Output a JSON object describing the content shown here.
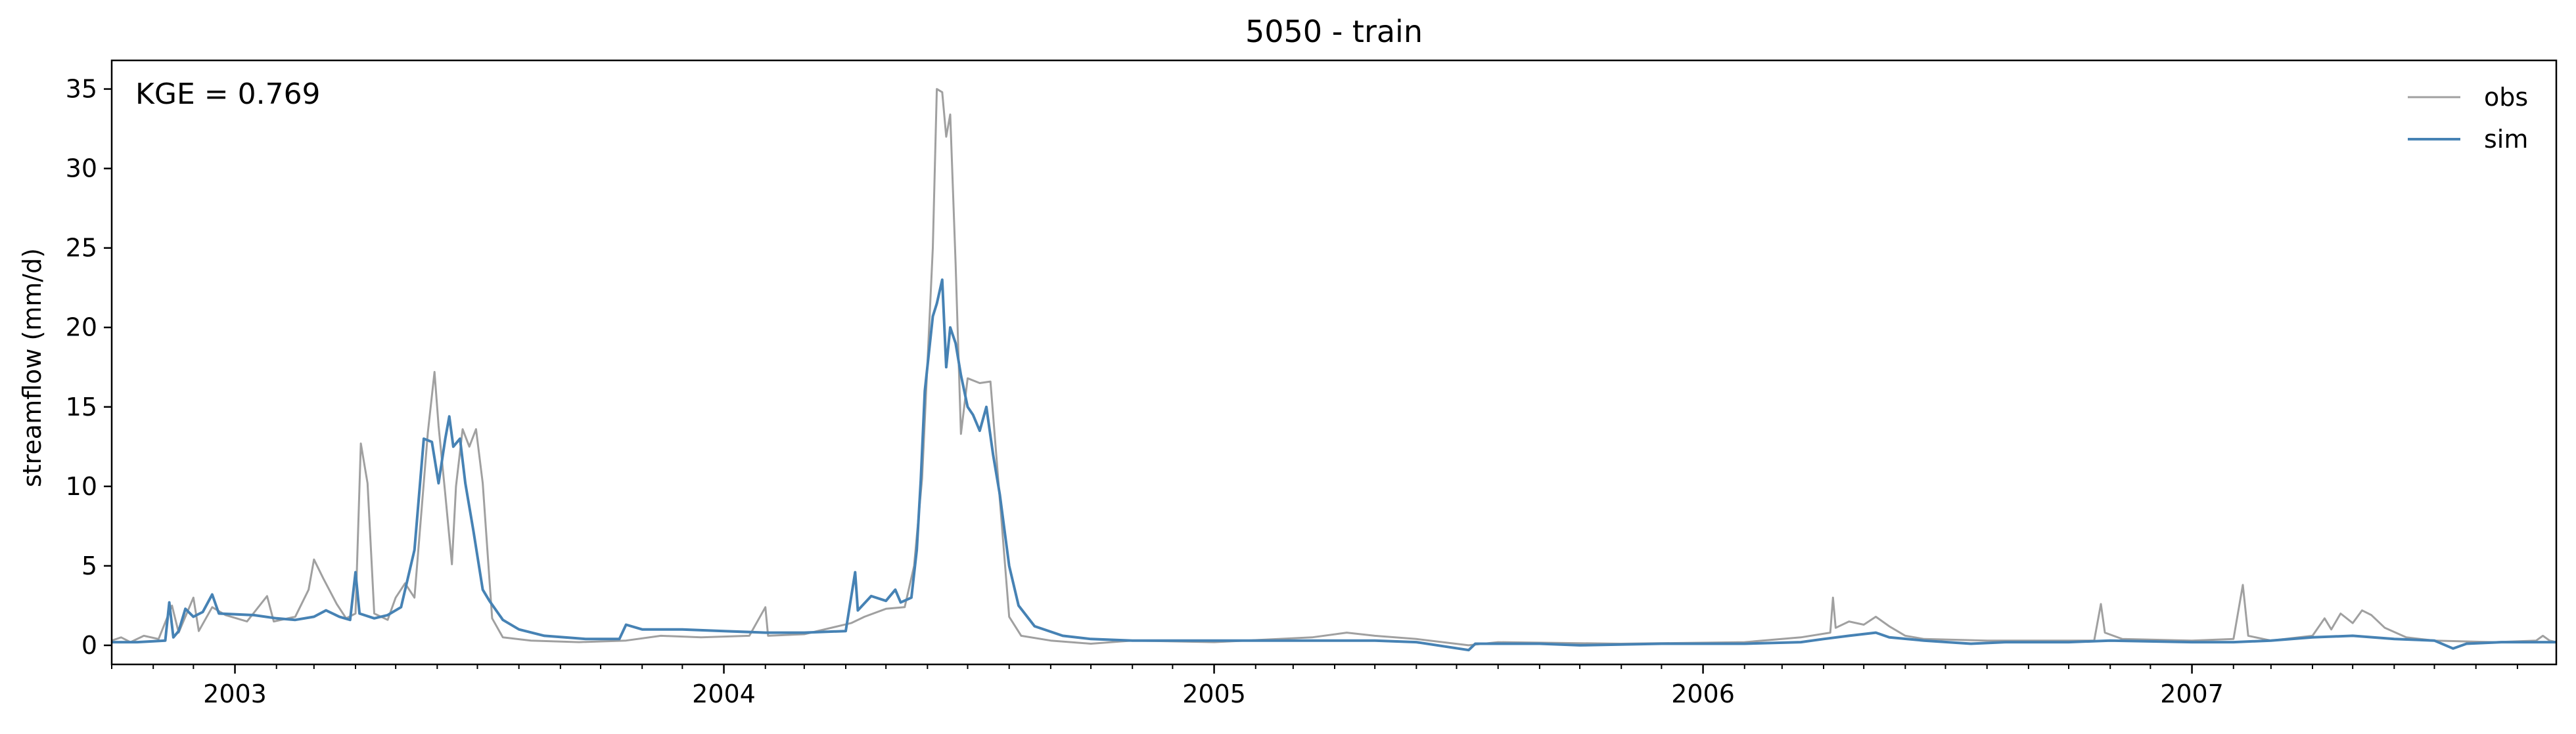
{
  "chart_data": {
    "type": "line",
    "title": "5050 - train",
    "xlabel": "",
    "ylabel": "streamflow (mm/d)",
    "xlim": [
      "2002-10-01",
      "2007-09-30"
    ],
    "ylim": [
      -1.2,
      36.8
    ],
    "yticks": [
      0,
      5,
      10,
      15,
      20,
      25,
      30,
      35
    ],
    "xticks": [
      {
        "label": "2003",
        "date": "2003-01-01"
      },
      {
        "label": "2004",
        "date": "2004-01-01"
      },
      {
        "label": "2005",
        "date": "2005-01-01"
      },
      {
        "label": "2006",
        "date": "2006-01-01"
      },
      {
        "label": "2007",
        "date": "2007-01-01"
      }
    ],
    "annotation": "KGE = 0.769",
    "legend_position": "top-right",
    "grid": false,
    "series": [
      {
        "name": "obs",
        "color": "#a0a0a0",
        "points": [
          [
            "2002-10-01",
            0.3
          ],
          [
            "2002-10-08",
            0.5
          ],
          [
            "2002-10-15",
            0.2
          ],
          [
            "2002-10-25",
            0.6
          ],
          [
            "2002-11-05",
            0.4
          ],
          [
            "2002-11-15",
            2.5
          ],
          [
            "2002-11-20",
            0.8
          ],
          [
            "2002-12-01",
            3.0
          ],
          [
            "2002-12-05",
            0.9
          ],
          [
            "2002-12-15",
            2.4
          ],
          [
            "2002-12-25",
            1.9
          ],
          [
            "2003-01-10",
            1.5
          ],
          [
            "2003-01-25",
            3.1
          ],
          [
            "2003-01-30",
            1.5
          ],
          [
            "2003-02-15",
            1.8
          ],
          [
            "2003-02-25",
            3.5
          ],
          [
            "2003-03-01",
            5.4
          ],
          [
            "2003-03-08",
            4.2
          ],
          [
            "2003-03-18",
            2.6
          ],
          [
            "2003-03-25",
            1.7
          ],
          [
            "2003-04-01",
            2.0
          ],
          [
            "2003-04-05",
            12.7
          ],
          [
            "2003-04-10",
            10.2
          ],
          [
            "2003-04-15",
            2.0
          ],
          [
            "2003-04-25",
            1.6
          ],
          [
            "2003-05-01",
            3.0
          ],
          [
            "2003-05-08",
            3.9
          ],
          [
            "2003-05-15",
            3.0
          ],
          [
            "2003-05-25",
            13.4
          ],
          [
            "2003-05-30",
            17.2
          ],
          [
            "2003-06-02",
            13.8
          ],
          [
            "2003-06-07",
            9.5
          ],
          [
            "2003-06-12",
            5.1
          ],
          [
            "2003-06-15",
            10.0
          ],
          [
            "2003-06-20",
            13.6
          ],
          [
            "2003-06-25",
            12.5
          ],
          [
            "2003-06-30",
            13.6
          ],
          [
            "2003-07-05",
            10.2
          ],
          [
            "2003-07-12",
            1.7
          ],
          [
            "2003-07-20",
            0.5
          ],
          [
            "2003-08-10",
            0.3
          ],
          [
            "2003-09-15",
            0.2
          ],
          [
            "2003-10-20",
            0.3
          ],
          [
            "2003-11-15",
            0.6
          ],
          [
            "2003-12-15",
            0.5
          ],
          [
            "2004-01-20",
            0.6
          ],
          [
            "2004-02-01",
            2.4
          ],
          [
            "2004-02-03",
            0.6
          ],
          [
            "2004-03-01",
            0.7
          ],
          [
            "2004-04-05",
            1.4
          ],
          [
            "2004-04-15",
            1.8
          ],
          [
            "2004-05-01",
            2.3
          ],
          [
            "2004-05-15",
            2.4
          ],
          [
            "2004-05-22",
            5.0
          ],
          [
            "2004-05-28",
            10.5
          ],
          [
            "2004-06-05",
            25.0
          ],
          [
            "2004-06-08",
            35.0
          ],
          [
            "2004-06-12",
            34.8
          ],
          [
            "2004-06-15",
            32.0
          ],
          [
            "2004-06-18",
            33.4
          ],
          [
            "2004-06-22",
            24.0
          ],
          [
            "2004-06-26",
            13.3
          ],
          [
            "2004-07-01",
            16.8
          ],
          [
            "2004-07-10",
            16.5
          ],
          [
            "2004-07-18",
            16.6
          ],
          [
            "2004-07-25",
            9.2
          ],
          [
            "2004-08-01",
            1.8
          ],
          [
            "2004-08-10",
            0.6
          ],
          [
            "2004-09-01",
            0.3
          ],
          [
            "2004-10-01",
            0.1
          ],
          [
            "2004-11-01",
            0.3
          ],
          [
            "2005-01-01",
            0.2
          ],
          [
            "2005-03-15",
            0.5
          ],
          [
            "2005-04-10",
            0.8
          ],
          [
            "2005-05-01",
            0.6
          ],
          [
            "2005-06-01",
            0.4
          ],
          [
            "2005-07-10",
            0.0
          ],
          [
            "2005-08-01",
            0.2
          ],
          [
            "2005-11-01",
            0.1
          ],
          [
            "2006-02-01",
            0.2
          ],
          [
            "2006-03-15",
            0.5
          ],
          [
            "2006-04-06",
            0.8
          ],
          [
            "2006-04-08",
            3.0
          ],
          [
            "2006-04-10",
            1.1
          ],
          [
            "2006-04-20",
            1.5
          ],
          [
            "2006-05-01",
            1.3
          ],
          [
            "2006-05-10",
            1.8
          ],
          [
            "2006-05-20",
            1.2
          ],
          [
            "2006-06-01",
            0.6
          ],
          [
            "2006-06-15",
            0.4
          ],
          [
            "2006-08-01",
            0.3
          ],
          [
            "2006-10-20",
            0.3
          ],
          [
            "2006-10-25",
            2.6
          ],
          [
            "2006-10-28",
            0.8
          ],
          [
            "2006-11-10",
            0.4
          ],
          [
            "2007-01-01",
            0.3
          ],
          [
            "2007-02-01",
            0.4
          ],
          [
            "2007-02-08",
            3.8
          ],
          [
            "2007-02-12",
            0.6
          ],
          [
            "2007-03-01",
            0.3
          ],
          [
            "2007-04-01",
            0.6
          ],
          [
            "2007-04-10",
            1.7
          ],
          [
            "2007-04-15",
            1.0
          ],
          [
            "2007-04-22",
            2.0
          ],
          [
            "2007-05-01",
            1.4
          ],
          [
            "2007-05-08",
            2.2
          ],
          [
            "2007-05-15",
            1.9
          ],
          [
            "2007-05-25",
            1.1
          ],
          [
            "2007-06-10",
            0.5
          ],
          [
            "2007-07-01",
            0.3
          ],
          [
            "2007-08-15",
            0.2
          ],
          [
            "2007-09-15",
            0.3
          ],
          [
            "2007-09-20",
            0.6
          ],
          [
            "2007-09-25",
            0.3
          ],
          [
            "2007-09-30",
            0.2
          ]
        ]
      },
      {
        "name": "sim",
        "color": "#4682b4",
        "points": [
          [
            "2002-10-01",
            0.2
          ],
          [
            "2002-10-20",
            0.2
          ],
          [
            "2002-11-10",
            0.3
          ],
          [
            "2002-11-13",
            2.7
          ],
          [
            "2002-11-16",
            0.5
          ],
          [
            "2002-11-20",
            0.9
          ],
          [
            "2002-11-25",
            2.3
          ],
          [
            "2002-12-01",
            1.8
          ],
          [
            "2002-12-08",
            2.1
          ],
          [
            "2002-12-15",
            3.2
          ],
          [
            "2002-12-20",
            2.0
          ],
          [
            "2003-01-15",
            1.9
          ],
          [
            "2003-02-01",
            1.7
          ],
          [
            "2003-02-15",
            1.6
          ],
          [
            "2003-03-01",
            1.8
          ],
          [
            "2003-03-10",
            2.2
          ],
          [
            "2003-03-20",
            1.8
          ],
          [
            "2003-03-28",
            1.6
          ],
          [
            "2003-04-01",
            4.6
          ],
          [
            "2003-04-04",
            2.0
          ],
          [
            "2003-04-15",
            1.7
          ],
          [
            "2003-04-25",
            1.9
          ],
          [
            "2003-05-05",
            2.4
          ],
          [
            "2003-05-15",
            6.0
          ],
          [
            "2003-05-22",
            13.0
          ],
          [
            "2003-05-28",
            12.8
          ],
          [
            "2003-06-02",
            10.2
          ],
          [
            "2003-06-07",
            13.0
          ],
          [
            "2003-06-10",
            14.4
          ],
          [
            "2003-06-13",
            12.5
          ],
          [
            "2003-06-18",
            13.0
          ],
          [
            "2003-06-22",
            10.2
          ],
          [
            "2003-06-28",
            7.2
          ],
          [
            "2003-07-05",
            3.5
          ],
          [
            "2003-07-10",
            2.8
          ],
          [
            "2003-07-20",
            1.6
          ],
          [
            "2003-08-01",
            1.0
          ],
          [
            "2003-08-20",
            0.6
          ],
          [
            "2003-09-20",
            0.4
          ],
          [
            "2003-10-15",
            0.4
          ],
          [
            "2003-10-20",
            1.3
          ],
          [
            "2003-11-01",
            1.0
          ],
          [
            "2003-12-01",
            1.0
          ],
          [
            "2004-01-01",
            0.9
          ],
          [
            "2004-02-01",
            0.8
          ],
          [
            "2004-03-01",
            0.8
          ],
          [
            "2004-04-01",
            0.9
          ],
          [
            "2004-04-08",
            4.6
          ],
          [
            "2004-04-10",
            2.2
          ],
          [
            "2004-04-20",
            3.1
          ],
          [
            "2004-05-01",
            2.8
          ],
          [
            "2004-05-08",
            3.5
          ],
          [
            "2004-05-12",
            2.7
          ],
          [
            "2004-05-20",
            3.0
          ],
          [
            "2004-05-24",
            6.0
          ],
          [
            "2004-05-27",
            10.4
          ],
          [
            "2004-05-30",
            16.0
          ],
          [
            "2004-06-05",
            20.7
          ],
          [
            "2004-06-08",
            21.5
          ],
          [
            "2004-06-12",
            23.0
          ],
          [
            "2004-06-15",
            17.5
          ],
          [
            "2004-06-18",
            20.0
          ],
          [
            "2004-06-22",
            19.0
          ],
          [
            "2004-06-26",
            17.0
          ],
          [
            "2004-07-01",
            15.0
          ],
          [
            "2004-07-05",
            14.5
          ],
          [
            "2004-07-10",
            13.5
          ],
          [
            "2004-07-15",
            15.0
          ],
          [
            "2004-07-20",
            12.0
          ],
          [
            "2004-07-25",
            9.5
          ],
          [
            "2004-08-01",
            5.0
          ],
          [
            "2004-08-08",
            2.5
          ],
          [
            "2004-08-20",
            1.2
          ],
          [
            "2004-09-10",
            0.6
          ],
          [
            "2004-10-01",
            0.4
          ],
          [
            "2004-11-01",
            0.3
          ],
          [
            "2005-01-01",
            0.3
          ],
          [
            "2005-03-01",
            0.3
          ],
          [
            "2005-05-01",
            0.3
          ],
          [
            "2005-06-01",
            0.2
          ],
          [
            "2005-07-10",
            -0.3
          ],
          [
            "2005-07-15",
            0.1
          ],
          [
            "2005-09-01",
            0.1
          ],
          [
            "2005-10-01",
            0.0
          ],
          [
            "2005-12-01",
            0.1
          ],
          [
            "2006-02-01",
            0.1
          ],
          [
            "2006-03-15",
            0.2
          ],
          [
            "2006-04-01",
            0.4
          ],
          [
            "2006-04-20",
            0.6
          ],
          [
            "2006-05-10",
            0.8
          ],
          [
            "2006-05-20",
            0.5
          ],
          [
            "2006-06-15",
            0.3
          ],
          [
            "2006-07-20",
            0.1
          ],
          [
            "2006-08-15",
            0.2
          ],
          [
            "2006-10-01",
            0.2
          ],
          [
            "2006-11-01",
            0.3
          ],
          [
            "2007-01-01",
            0.2
          ],
          [
            "2007-02-01",
            0.2
          ],
          [
            "2007-03-01",
            0.3
          ],
          [
            "2007-04-01",
            0.5
          ],
          [
            "2007-05-01",
            0.6
          ],
          [
            "2007-06-01",
            0.4
          ],
          [
            "2007-07-01",
            0.3
          ],
          [
            "2007-07-15",
            -0.2
          ],
          [
            "2007-07-25",
            0.1
          ],
          [
            "2007-08-20",
            0.2
          ],
          [
            "2007-09-30",
            0.2
          ]
        ]
      }
    ]
  }
}
